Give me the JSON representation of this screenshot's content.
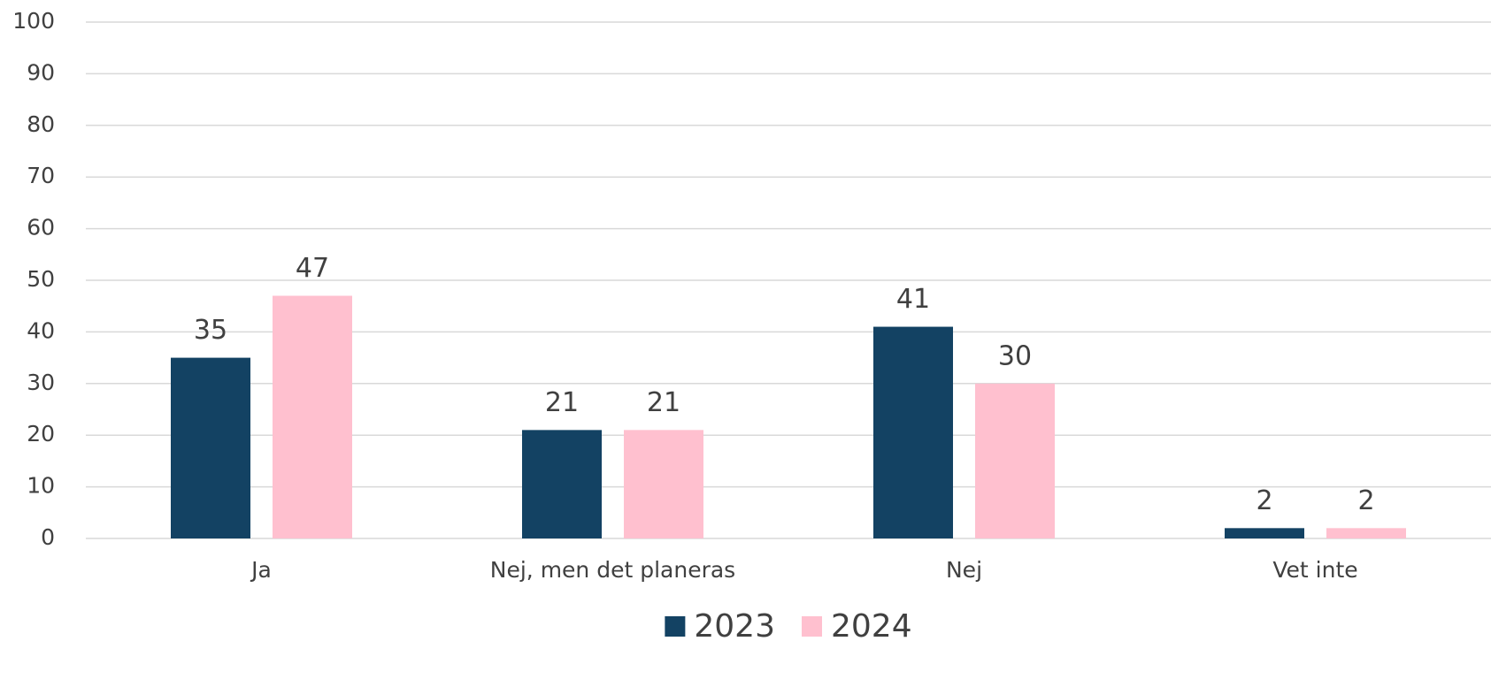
{
  "chart_data": {
    "type": "bar",
    "categories": [
      "Ja",
      "Nej, men det planeras",
      "Nej",
      "Vet inte"
    ],
    "series": [
      {
        "name": "2023",
        "color": "#134263",
        "values": [
          35,
          21,
          41,
          2
        ]
      },
      {
        "name": "2024",
        "color": "#ffc0cf",
        "values": [
          47,
          21,
          30,
          2
        ]
      }
    ],
    "ylim": [
      0,
      100
    ],
    "yticks": [
      0,
      10,
      20,
      30,
      40,
      50,
      60,
      70,
      80,
      90,
      100
    ],
    "grid": true,
    "legend": "bottom"
  }
}
